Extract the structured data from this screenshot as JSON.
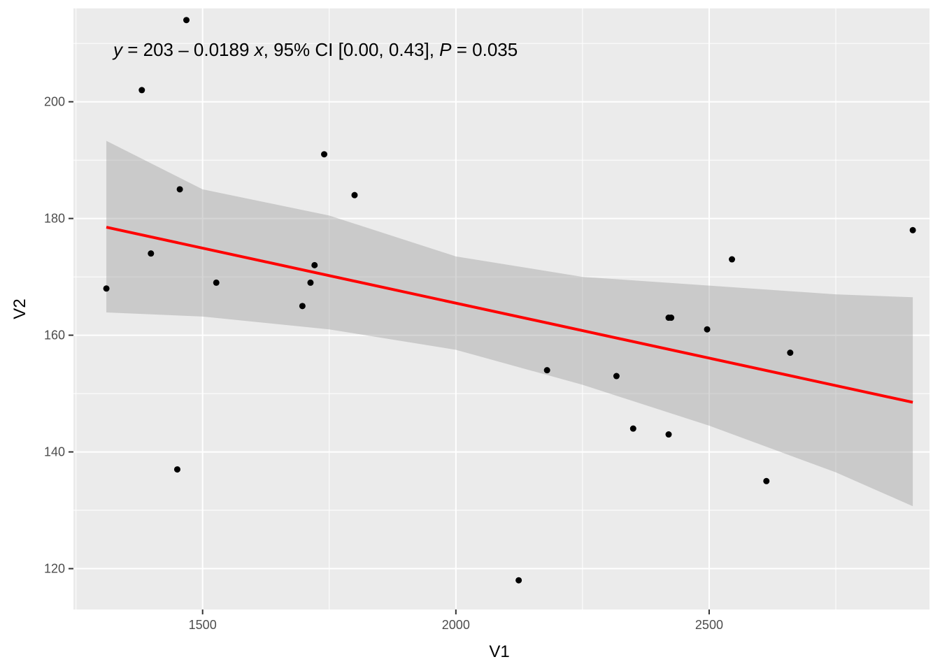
{
  "chart_data": {
    "type": "scatter",
    "xlabel": "V1",
    "ylabel": "V2",
    "xlim": [
      1245,
      2935
    ],
    "ylim": [
      113,
      216
    ],
    "x_ticks": [
      1500,
      2000,
      2500
    ],
    "y_ticks": [
      120,
      140,
      160,
      180,
      200
    ],
    "x_tick_labels": [
      "1500",
      "2000",
      "2500"
    ],
    "y_tick_labels": [
      "120",
      "140",
      "160",
      "180",
      "200"
    ],
    "grid": true,
    "annotation": {
      "y_var": "y",
      "eq_mid": " = 203 – 0.0189 ",
      "x_var": "x",
      "ci_text": ", 95% CI [0.00, 0.43], ",
      "p_var": "P",
      "p_text": " = 0.035"
    },
    "points": [
      {
        "x": 1310,
        "y": 168
      },
      {
        "x": 1380,
        "y": 202
      },
      {
        "x": 1398,
        "y": 174
      },
      {
        "x": 1450,
        "y": 137
      },
      {
        "x": 1455,
        "y": 185
      },
      {
        "x": 1468,
        "y": 214
      },
      {
        "x": 1527,
        "y": 169
      },
      {
        "x": 1697,
        "y": 165
      },
      {
        "x": 1713,
        "y": 169
      },
      {
        "x": 1721,
        "y": 172
      },
      {
        "x": 1740,
        "y": 191
      },
      {
        "x": 1800,
        "y": 184
      },
      {
        "x": 2124,
        "y": 118
      },
      {
        "x": 2180,
        "y": 154
      },
      {
        "x": 2317,
        "y": 153
      },
      {
        "x": 2350,
        "y": 144
      },
      {
        "x": 2420,
        "y": 143
      },
      {
        "x": 2420,
        "y": 163
      },
      {
        "x": 2425,
        "y": 163
      },
      {
        "x": 2496,
        "y": 161
      },
      {
        "x": 2545,
        "y": 173
      },
      {
        "x": 2613,
        "y": 135
      },
      {
        "x": 2660,
        "y": 157
      },
      {
        "x": 2902,
        "y": 178
      }
    ],
    "fit_line": {
      "color": "#ff0000",
      "x": [
        1310,
        2902
      ],
      "y": [
        178.5,
        148.5
      ]
    },
    "confidence_band": {
      "color": "#999999",
      "x": [
        1310,
        1500,
        1750,
        2000,
        2250,
        2500,
        2750,
        2902
      ],
      "lower": [
        163.9,
        163.2,
        161.0,
        157.5,
        151.5,
        144.5,
        136.5,
        130.7
      ],
      "upper": [
        193.3,
        185.0,
        180.5,
        173.5,
        170.0,
        168.5,
        167.0,
        166.5
      ]
    },
    "panel_background": "#ebebeb",
    "grid_color": "#ffffff",
    "point_color": "#000000"
  }
}
